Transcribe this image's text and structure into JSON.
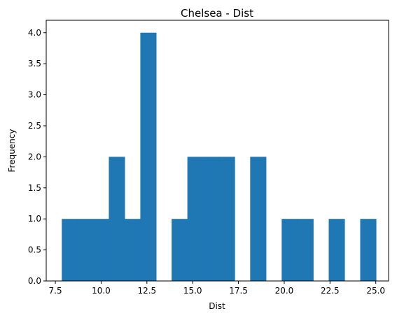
{
  "chart_data": {
    "type": "bar",
    "title": "Chelsea - Dist",
    "xlabel": "Dist",
    "ylabel": "Frequency",
    "xlim": [
      7.0,
      25.7
    ],
    "ylim": [
      0,
      4.2
    ],
    "xticks": [
      7.5,
      10.0,
      12.5,
      15.0,
      17.5,
      20.0,
      22.5,
      25.0
    ],
    "xtick_labels": [
      "7.5",
      "10.0",
      "12.5",
      "15.0",
      "17.5",
      "20.0",
      "22.5",
      "25.0"
    ],
    "yticks": [
      0,
      0.5,
      1.0,
      1.5,
      2.0,
      2.5,
      3.0,
      3.5,
      4.0
    ],
    "ytick_labels": [
      "0.0",
      "0.5",
      "1.0",
      "1.5",
      "2.0",
      "2.5",
      "3.0",
      "3.5",
      "4.0"
    ],
    "bin_edges": [
      7.85,
      8.71,
      9.56,
      10.42,
      11.28,
      12.14,
      13.0,
      13.85,
      14.71,
      15.57,
      16.43,
      17.29,
      18.14,
      19.0,
      19.86,
      20.72,
      21.58,
      22.43,
      23.29,
      24.15,
      25.01
    ],
    "values": [
      1,
      1,
      1,
      2,
      1,
      4,
      0,
      1,
      2,
      2,
      2,
      0,
      2,
      0,
      1,
      1,
      0,
      1,
      0,
      1
    ],
    "color": "#1f77b4",
    "grid": false
  }
}
